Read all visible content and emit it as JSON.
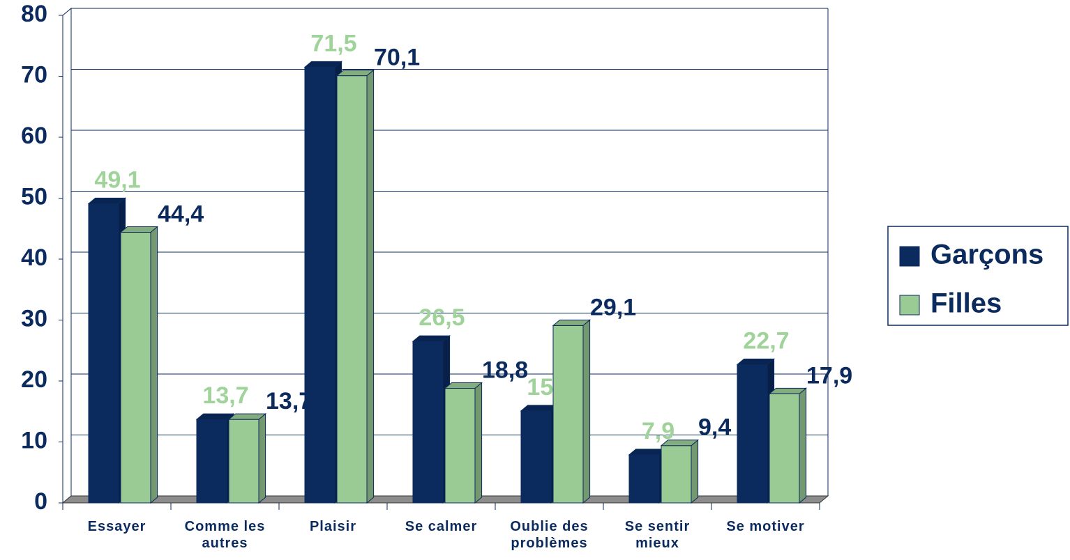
{
  "chart_data": {
    "type": "bar3d",
    "categories": [
      "Essayer",
      "Comme les autres",
      "Plaisir",
      "Se calmer",
      "Oublie des problèmes",
      "Se sentir mieux",
      "Se motiver"
    ],
    "series": [
      {
        "name": "Garçons",
        "color": "#0b2a5e",
        "label_color": "#9fd39a",
        "values": [
          49.1,
          13.7,
          71.5,
          26.5,
          15.1,
          7.9,
          22.7
        ],
        "value_labels": [
          "49,1",
          "13,7",
          "71,5",
          "26,5",
          "15,1",
          "7,9",
          "22,7"
        ]
      },
      {
        "name": "Filles",
        "color": "#9acb95",
        "label_color": "#0b2a5e",
        "values": [
          44.4,
          13.7,
          70.1,
          18.8,
          29.1,
          9.4,
          17.9
        ],
        "value_labels": [
          "44,4",
          "13,7",
          "70,1",
          "18,8",
          "29,1",
          "9,4",
          "17,9"
        ]
      }
    ],
    "ylim": [
      0,
      80
    ],
    "yticks": [
      0,
      10,
      20,
      30,
      40,
      50,
      60,
      70,
      80
    ],
    "grid": true,
    "legend": "right"
  }
}
